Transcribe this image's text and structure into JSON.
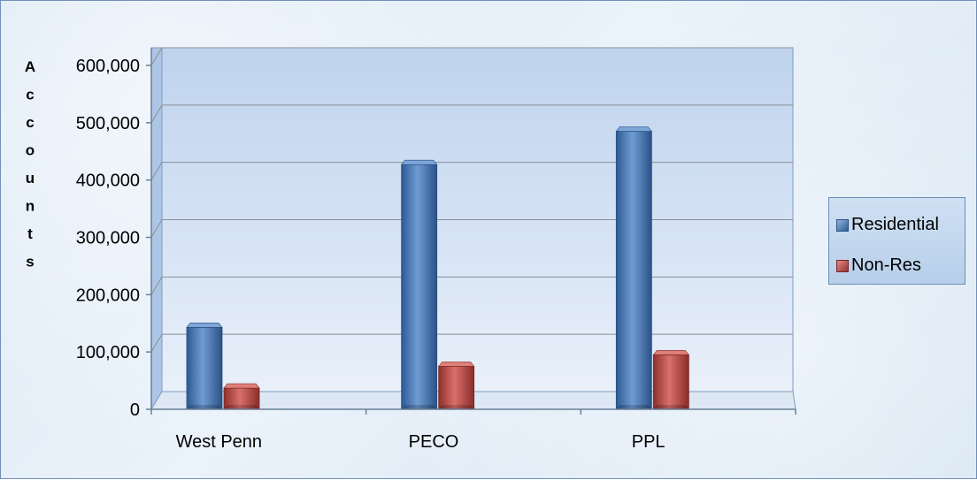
{
  "chart_data": {
    "type": "bar",
    "categories": [
      "West Penn",
      "PECO",
      "PPL"
    ],
    "series": [
      {
        "name": "Residential",
        "values": [
          143000,
          427000,
          485000
        ],
        "color": "#4f81bd"
      },
      {
        "name": "Non-Res",
        "values": [
          37000,
          75000,
          95000
        ],
        "color": "#c0504d"
      }
    ],
    "ylabel": "Accounts",
    "ylim": [
      0,
      600000
    ],
    "yticks": [
      0,
      100000,
      200000,
      300000,
      400000,
      500000,
      600000
    ],
    "ytick_labels": [
      "0",
      "100,000",
      "200,000",
      "300,000",
      "400,000",
      "500,000",
      "600,000"
    ],
    "grid": true,
    "legend_position": "right",
    "style": "3d-bar"
  }
}
